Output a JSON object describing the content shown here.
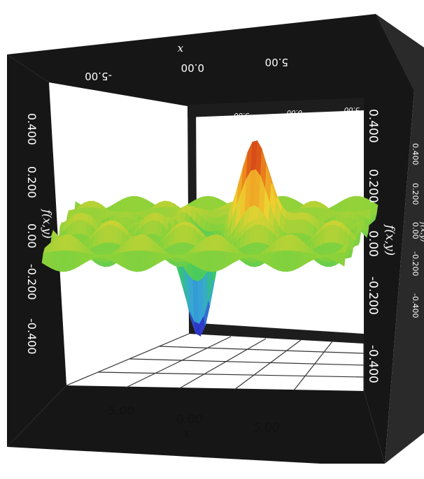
{
  "chart_data": {
    "type": "surface3d",
    "function": "f(x,y)",
    "xlabel": "x",
    "ylabel": "",
    "zlabel": "f(x,y)",
    "x_ticks": [
      "-5.00",
      "0.00",
      "5.00"
    ],
    "z_ticks": [
      "0.400",
      "0.200",
      "0.00",
      "-0.200",
      "-0.400"
    ],
    "zlim": [
      -0.4,
      0.4
    ],
    "xlim": [
      -8,
      8
    ],
    "ylim": [
      -8,
      8
    ],
    "grid": true,
    "colormap": [
      "#2e35c8",
      "#36a6d8",
      "#35c86a",
      "#8ad23a",
      "#f0d231",
      "#ee8a1d",
      "#c81e14"
    ],
    "peaks": [
      {
        "x": 2.5,
        "y": 0.0,
        "z": 0.45
      },
      {
        "x": -0.5,
        "y": 0.0,
        "z": -0.4
      }
    ]
  }
}
